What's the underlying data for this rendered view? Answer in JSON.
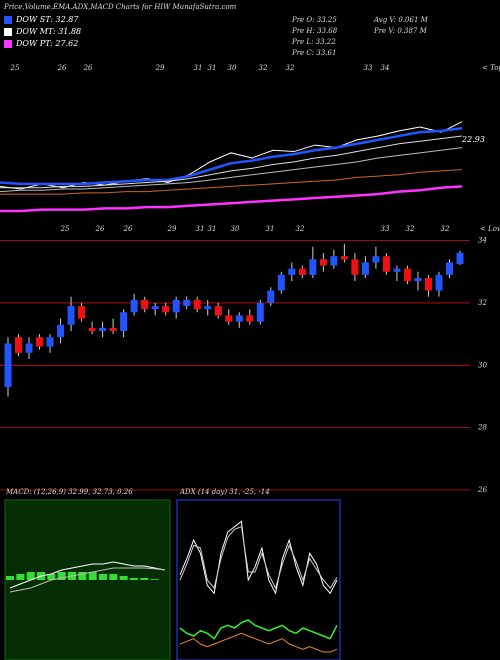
{
  "header": {
    "title": "Price,Volume,EMA,ADX,MACD Charts for HIW MunafaSutra.com",
    "legend": [
      {
        "text": "DOW ST: 32.87",
        "color": "#2255ff"
      },
      {
        "text": "DOW MT: 31.88",
        "color": "#ffffff"
      },
      {
        "text": "DOW PT: 27.62",
        "color": "#ff33ff"
      }
    ],
    "stats": [
      "Pre  O: 33.25",
      "Pre  H: 33.68",
      "Pre  L: 33.22",
      "Pre  C: 33.61",
      "Avg  V: 0.061 M",
      "Pre  V: 0.387 M"
    ]
  },
  "chart_data": [
    {
      "type": "line",
      "annotation": "22.93",
      "marker_text": "< Tops",
      "top_labels": [
        "25",
        "26",
        "26",
        "29",
        "31",
        "31",
        "30",
        "32",
        "32",
        "33",
        "34"
      ],
      "ylim": [
        24,
        36
      ],
      "series": [
        {
          "color": "#ffffff",
          "values": [
            26.6,
            26.4,
            26.8,
            26.5,
            26.9,
            26.7,
            27.0,
            27.2,
            26.9,
            27.5,
            28.5,
            29.2,
            28.8,
            29.4,
            29.3,
            29.8,
            29.6,
            30.2,
            30.5,
            30.9,
            31.2,
            30.8,
            31.6
          ]
        },
        {
          "color": "#2255ff",
          "values": [
            26.9,
            26.8,
            26.8,
            26.8,
            26.8,
            26.9,
            27.0,
            27.1,
            27.1,
            27.4,
            27.9,
            28.4,
            28.6,
            28.9,
            29.1,
            29.4,
            29.6,
            29.9,
            30.2,
            30.5,
            30.8,
            30.9,
            31.1
          ]
        },
        {
          "color": "#dddddd",
          "values": [
            26.5,
            26.5,
            26.5,
            26.6,
            26.6,
            26.7,
            26.8,
            26.9,
            27.0,
            27.2,
            27.5,
            27.8,
            28.0,
            28.3,
            28.5,
            28.8,
            29.0,
            29.3,
            29.6,
            29.9,
            30.1,
            30.3,
            30.5
          ]
        },
        {
          "color": "#bbbbbb",
          "values": [
            26.2,
            26.3,
            26.3,
            26.4,
            26.4,
            26.5,
            26.6,
            26.7,
            26.8,
            26.9,
            27.1,
            27.3,
            27.5,
            27.7,
            27.9,
            28.1,
            28.3,
            28.5,
            28.8,
            29.0,
            29.2,
            29.4,
            29.6
          ]
        },
        {
          "color": "#cc6622",
          "values": [
            26.0,
            26.0,
            26.0,
            26.0,
            26.1,
            26.1,
            26.2,
            26.2,
            26.3,
            26.4,
            26.5,
            26.6,
            26.7,
            26.8,
            26.9,
            27.0,
            27.1,
            27.3,
            27.4,
            27.5,
            27.7,
            27.8,
            27.9
          ]
        },
        {
          "color": "#ff33ff",
          "values": [
            24.7,
            24.7,
            24.8,
            24.8,
            24.8,
            24.9,
            24.9,
            25.0,
            25.0,
            25.1,
            25.2,
            25.3,
            25.4,
            25.5,
            25.6,
            25.7,
            25.8,
            25.9,
            26.0,
            26.2,
            26.3,
            26.5,
            26.6
          ]
        }
      ]
    },
    {
      "type": "candlestick",
      "marker_text": "< Lows",
      "top_labels": [
        "25",
        "26",
        "26",
        "29",
        "31",
        "31",
        "30",
        "31",
        "32",
        "33",
        "32",
        "32"
      ],
      "ylim": [
        26,
        34.5
      ],
      "yticks": [
        26,
        28,
        30,
        32,
        34
      ],
      "grid_color": "#cc1111",
      "up_color": "#2255ff",
      "down_color": "#ee1111",
      "open": [
        29.3,
        30.9,
        30.4,
        30.9,
        30.6,
        30.9,
        31.3,
        31.9,
        31.2,
        31.1,
        31.2,
        31.1,
        31.7,
        32.1,
        31.8,
        31.9,
        31.7,
        31.9,
        32.1,
        31.8,
        31.9,
        31.6,
        31.4,
        31.6,
        31.4,
        32.0,
        32.4,
        32.9,
        33.1,
        32.9,
        33.4,
        33.2,
        33.5,
        33.4,
        32.9,
        33.3,
        33.5,
        33.0,
        33.1,
        32.7,
        32.8,
        32.4,
        32.9,
        33.25
      ],
      "high": [
        30.9,
        31.0,
        30.9,
        31.0,
        31.0,
        31.5,
        32.2,
        32.0,
        31.4,
        31.4,
        31.5,
        31.8,
        32.3,
        32.2,
        32.0,
        32.0,
        32.2,
        32.2,
        32.2,
        32.1,
        32.0,
        31.8,
        31.7,
        31.8,
        32.1,
        32.5,
        33.0,
        33.3,
        33.2,
        33.8,
        33.6,
        33.7,
        33.9,
        33.6,
        33.5,
        33.8,
        33.6,
        33.2,
        33.2,
        33.0,
        32.9,
        33.0,
        33.4,
        33.68
      ],
      "low": [
        29.0,
        30.3,
        30.2,
        30.5,
        30.4,
        30.7,
        31.1,
        31.4,
        31.0,
        30.9,
        31.0,
        30.9,
        31.6,
        31.7,
        31.6,
        31.6,
        31.5,
        31.8,
        31.7,
        31.6,
        31.5,
        31.3,
        31.2,
        31.3,
        31.3,
        31.9,
        32.3,
        32.7,
        32.8,
        32.8,
        33.0,
        33.1,
        33.3,
        32.7,
        32.8,
        33.1,
        32.9,
        32.7,
        32.6,
        32.4,
        32.2,
        32.2,
        32.8,
        33.22
      ],
      "close": [
        30.7,
        30.4,
        30.7,
        30.6,
        30.9,
        31.3,
        31.9,
        31.5,
        31.1,
        31.2,
        31.1,
        31.7,
        32.1,
        31.8,
        31.9,
        31.7,
        32.1,
        32.1,
        31.8,
        31.9,
        31.6,
        31.4,
        31.6,
        31.4,
        32.0,
        32.4,
        32.9,
        33.1,
        32.9,
        33.4,
        33.2,
        33.5,
        33.4,
        32.9,
        33.3,
        33.5,
        33.0,
        33.1,
        32.7,
        32.8,
        32.4,
        32.9,
        33.3,
        33.61
      ]
    },
    {
      "type": "macd",
      "title": "MACD: (12,26,9) 32.99, 32.73, 0.26",
      "ylim": [
        -2,
        2
      ],
      "bar_color": "#33dd33",
      "series": [
        {
          "color": "#ffffff",
          "values": [
            -0.2,
            -0.1,
            0.0,
            0.1,
            0.15,
            0.25,
            0.3,
            0.35,
            0.4,
            0.4,
            0.45,
            0.4,
            0.35,
            0.35,
            0.3,
            0.25
          ]
        },
        {
          "color": "#bbbbbb",
          "values": [
            -0.3,
            -0.25,
            -0.2,
            -0.1,
            0.0,
            0.05,
            0.1,
            0.15,
            0.2,
            0.25,
            0.3,
            0.3,
            0.3,
            0.3,
            0.28,
            0.25
          ]
        }
      ],
      "histogram": [
        0.1,
        0.15,
        0.2,
        0.2,
        0.15,
        0.2,
        0.2,
        0.2,
        0.2,
        0.15,
        0.15,
        0.1,
        0.05,
        0.05,
        0.02,
        0.0
      ]
    },
    {
      "type": "adx",
      "title": "ADX (14 day) 31, -25, -14",
      "ylim": [
        0,
        60
      ],
      "border_color": "#2244ff",
      "series": [
        {
          "color": "#ffffff",
          "values": [
            32,
            38,
            45,
            40,
            28,
            25,
            40,
            48,
            50,
            52,
            30,
            35,
            42,
            30,
            25,
            38,
            45,
            35,
            28,
            40,
            36,
            28,
            25,
            30
          ]
        },
        {
          "color": "#cccccc",
          "values": [
            30,
            36,
            43,
            42,
            30,
            27,
            38,
            46,
            49,
            50,
            33,
            33,
            40,
            32,
            27,
            36,
            43,
            37,
            30,
            38,
            34,
            30,
            27,
            31
          ]
        },
        {
          "color": "#33ee33",
          "values": [
            12,
            10,
            9,
            11,
            10,
            8,
            12,
            13,
            12,
            14,
            15,
            13,
            12,
            11,
            12,
            13,
            11,
            10,
            12,
            11,
            10,
            9,
            8,
            13
          ]
        },
        {
          "color": "#ee8822",
          "values": [
            6,
            7,
            8,
            6,
            5,
            6,
            7,
            8,
            9,
            10,
            9,
            8,
            7,
            6,
            7,
            8,
            6,
            5,
            4,
            5,
            4,
            3,
            3,
            4
          ]
        }
      ]
    }
  ]
}
